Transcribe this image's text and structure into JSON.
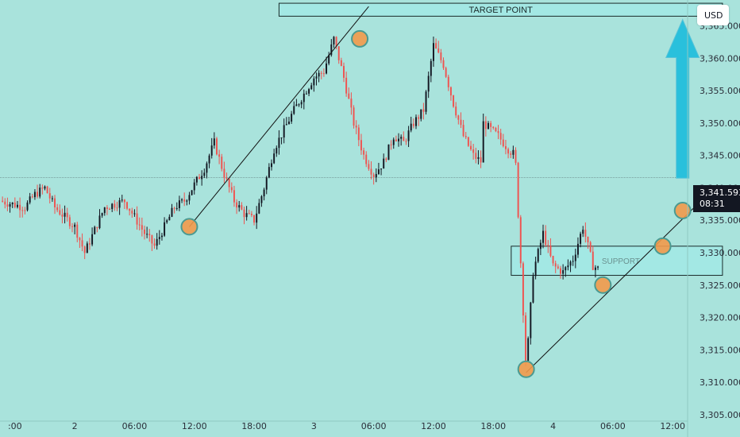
{
  "currency": "USD",
  "price_badge": {
    "price": "3,341.593",
    "countdown": "08:31"
  },
  "colors": {
    "background": "#a9e3dc",
    "up": "#131722",
    "down": "#ef5350",
    "marker": "#f2994a",
    "zone": "#a3e8e4",
    "arrow": "#29c0dc"
  },
  "annotations": {
    "target_label": "TARGET POINT",
    "zone_label": "SUPPORT"
  },
  "chart_data": {
    "type": "candlestick",
    "y_axis": {
      "ticks": [
        3305,
        3310,
        3315,
        3320,
        3325,
        3330,
        3335,
        3340,
        3345,
        3350,
        3355,
        3360,
        3365
      ],
      "tick_labels": [
        "3,305.000",
        "3,310.000",
        "3,315.000",
        "3,320.000",
        "3,325.000",
        "3,330.000",
        "3,335.000",
        "3,340.000",
        "3,345.000",
        "3,350.000",
        "3,355.000",
        "3,360.000",
        "3,365.000"
      ],
      "range": [
        3304,
        3369
      ]
    },
    "x_axis": {
      "tick_labels": [
        ":00",
        "2",
        "06:00",
        "12:00",
        "18:00",
        "3",
        "06:00",
        "12:00",
        "18:00",
        "4",
        "06:00",
        "12:00"
      ],
      "ticks_hours": [
        0,
        6,
        12,
        18,
        24,
        30,
        36,
        42,
        48,
        54,
        60,
        66
      ],
      "range_hours": [
        -1.5,
        67.5
      ],
      "last_hour": 58.5
    },
    "current_price": 3341.593,
    "anchors": [
      [
        -1.5,
        3338
      ],
      [
        1,
        3337
      ],
      [
        2,
        3339
      ],
      [
        3,
        3340
      ],
      [
        4,
        3337
      ],
      [
        6,
        3334
      ],
      [
        7,
        3330
      ],
      [
        9,
        3337
      ],
      [
        11,
        3338
      ],
      [
        13,
        3333
      ],
      [
        14,
        3331
      ],
      [
        15,
        3334
      ],
      [
        16,
        3337
      ],
      [
        17,
        3338
      ],
      [
        19,
        3343
      ],
      [
        20,
        3347
      ],
      [
        21,
        3342
      ],
      [
        22,
        3338
      ],
      [
        23,
        3336
      ],
      [
        24,
        3335
      ],
      [
        25,
        3340
      ],
      [
        26,
        3346
      ],
      [
        28,
        3352
      ],
      [
        30,
        3357
      ],
      [
        31,
        3358
      ],
      [
        32,
        3363
      ],
      [
        33,
        3357
      ],
      [
        34,
        3350
      ],
      [
        35,
        3345
      ],
      [
        36,
        3342
      ],
      [
        37,
        3344
      ],
      [
        38,
        3348
      ],
      [
        39,
        3347
      ],
      [
        40,
        3350
      ],
      [
        41,
        3352
      ],
      [
        42,
        3362
      ],
      [
        43,
        3359
      ],
      [
        44,
        3353
      ],
      [
        45,
        3348
      ],
      [
        46,
        3345
      ],
      [
        46.8,
        3344
      ],
      [
        47,
        3350
      ],
      [
        48.5,
        3348
      ],
      [
        49.5,
        3346
      ],
      [
        50.2,
        3345
      ],
      [
        51.3,
        3312
      ],
      [
        52,
        3327
      ],
      [
        53,
        3333
      ],
      [
        54,
        3328
      ],
      [
        55,
        3327
      ],
      [
        56,
        3329
      ],
      [
        57,
        3334
      ],
      [
        58,
        3328
      ],
      [
        59,
        3327
      ],
      [
        60,
        3328
      ],
      [
        61,
        3326
      ],
      [
        62,
        3324
      ],
      [
        63,
        3328
      ],
      [
        64,
        3330
      ],
      [
        65,
        3329
      ],
      [
        66,
        3331
      ],
      [
        67,
        3328
      ],
      [
        67.5,
        3330
      ],
      [
        68,
        3336
      ],
      [
        68.5,
        3341.6
      ]
    ],
    "markers": [
      [
        17.5,
        3334
      ],
      [
        34.6,
        3363
      ],
      [
        51.3,
        3312
      ],
      [
        59,
        3325
      ],
      [
        65,
        3331
      ],
      [
        67,
        3336.5
      ]
    ],
    "lines": [
      [
        [
          17.5,
          3334
        ],
        [
          35.5,
          3368
        ]
      ],
      [
        [
          51.3,
          3311.5
        ],
        [
          70.5,
          3340.5
        ]
      ]
    ],
    "price_line": 3341.593,
    "target_zone": {
      "x": [
        26.5,
        71
      ],
      "y": [
        3366.5,
        3368.5
      ]
    },
    "support_zone": {
      "x": [
        49.8,
        71
      ],
      "y": [
        3326.5,
        3331
      ]
    },
    "target_arrow": {
      "x": 67,
      "from": 3341.5,
      "to": 3366
    }
  }
}
